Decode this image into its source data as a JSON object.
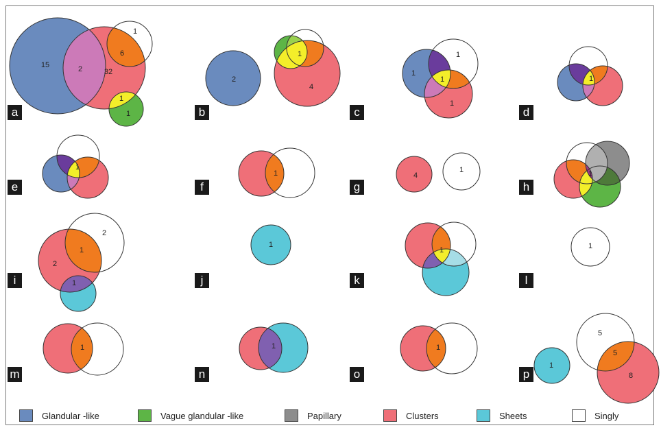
{
  "categories": [
    {
      "key": "glandular",
      "label": "Glandular -like",
      "color": "#6a8bbe"
    },
    {
      "key": "vague",
      "label": "Vague glandular -like",
      "color": "#5db546"
    },
    {
      "key": "papillary",
      "label": "Papillary",
      "color": "#8d8d8d"
    },
    {
      "key": "clusters",
      "label": "Clusters",
      "color": "#ef6f78"
    },
    {
      "key": "sheets",
      "label": "Sheets",
      "color": "#5bc8d8"
    },
    {
      "key": "singly",
      "label": "Singly",
      "color": "#ffffff"
    }
  ],
  "overlap_colors": {
    "glandular_clusters": "#cc7ab8",
    "glandular_singly": "#6a3c9c",
    "clusters_singly": "#f07b1f",
    "multi": "#f3ee2a",
    "vague_singly": "#9ad14e",
    "sheets_clusters": "#8060b0",
    "papillary_vague": "#4e7a3a"
  },
  "panels": [
    {
      "id": "a",
      "letter": "a",
      "labels": [
        "15",
        "2",
        "32",
        "6",
        "1",
        "1",
        "1"
      ]
    },
    {
      "id": "b",
      "letter": "b",
      "labels": [
        "2",
        "1",
        "4"
      ]
    },
    {
      "id": "c",
      "letter": "c",
      "labels": [
        "1",
        "1",
        "1",
        "1"
      ]
    },
    {
      "id": "d",
      "letter": "d",
      "labels": [
        "1"
      ]
    },
    {
      "id": "e",
      "letter": "e",
      "labels": [
        "1"
      ]
    },
    {
      "id": "f",
      "letter": "f",
      "labels": [
        "1"
      ]
    },
    {
      "id": "g",
      "letter": "g",
      "labels": [
        "4",
        "1"
      ]
    },
    {
      "id": "h",
      "letter": "h",
      "labels": [
        "1"
      ]
    },
    {
      "id": "i",
      "letter": "i",
      "labels": [
        "2",
        "1",
        "2",
        "1"
      ]
    },
    {
      "id": "j",
      "letter": "j",
      "labels": [
        "1"
      ]
    },
    {
      "id": "k",
      "letter": "k",
      "labels": [
        "1"
      ]
    },
    {
      "id": "l",
      "letter": "l",
      "labels": [
        "1"
      ]
    },
    {
      "id": "m",
      "letter": "m",
      "labels": [
        "1"
      ]
    },
    {
      "id": "n",
      "letter": "n",
      "labels": [
        "1"
      ]
    },
    {
      "id": "o",
      "letter": "o",
      "labels": [
        "1"
      ]
    },
    {
      "id": "p",
      "letter": "p",
      "labels": [
        "1",
        "5",
        "5",
        "8"
      ]
    }
  ]
}
